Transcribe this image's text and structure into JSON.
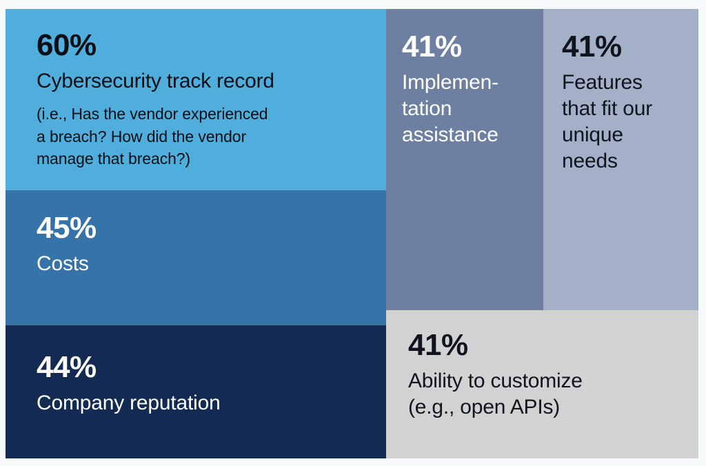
{
  "page": {
    "background_color": "#F7FAFB"
  },
  "chart_data": {
    "type": "treemap",
    "unit": "%",
    "legend": "none",
    "items": [
      {
        "id": "cybersecurity-track-record",
        "value": 60,
        "value_label": "60%",
        "label": "Cybersecurity track record",
        "note": "(i.e., Has the vendor experienced\na breach? How did the vendor\nmanage that breach?)",
        "color": "#4FAEDC",
        "text_color": "#0B0E14"
      },
      {
        "id": "costs",
        "value": 45,
        "value_label": "45%",
        "label": "Costs",
        "note": "",
        "color": "#3573A9",
        "text_color": "#FFFFFF"
      },
      {
        "id": "company-reputation",
        "value": 44,
        "value_label": "44%",
        "label": "Company reputation",
        "note": "",
        "color": "#132A52",
        "text_color": "#FFFFFF"
      },
      {
        "id": "implementation-assistance",
        "value": 41,
        "value_label": "41%",
        "label": "Implemen-\ntation\nassistance",
        "note": "",
        "color": "#6D80A1",
        "text_color": "#FFFFFF"
      },
      {
        "id": "features-that-fit-our-unique-needs",
        "value": 41,
        "value_label": "41%",
        "label": "Features\nthat fit our\nunique\nneeds",
        "note": "",
        "color": "#A3B0C8",
        "text_color": "#10141C"
      },
      {
        "id": "ability-to-customize",
        "value": 41,
        "value_label": "41%",
        "label": "Ability to customize\n(e.g., open APIs)",
        "note": "",
        "color": "#D2D2D2",
        "text_color": "#10141C"
      }
    ]
  }
}
